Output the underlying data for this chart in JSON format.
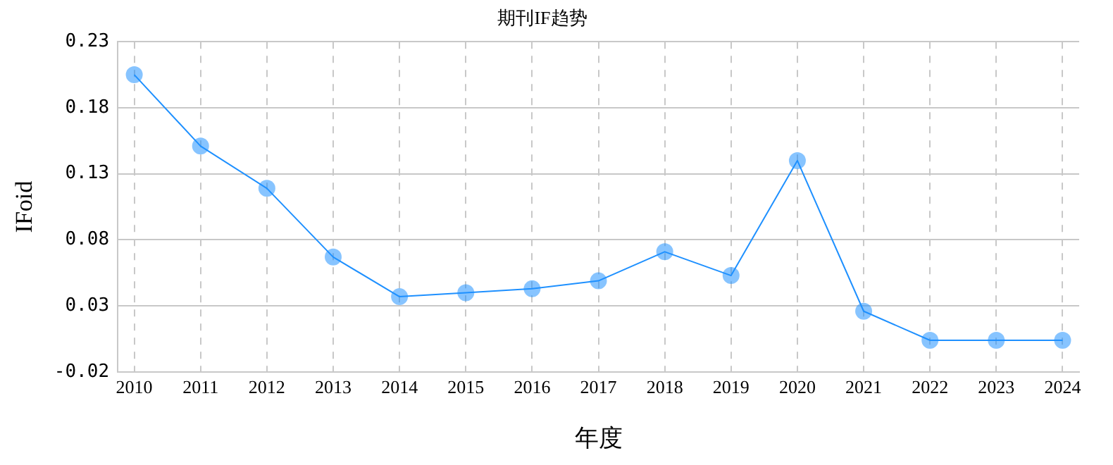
{
  "chart_data": {
    "type": "line",
    "title": "期刊IF趋势",
    "xlabel": "年度",
    "ylabel": "IFoid",
    "categories": [
      "2010",
      "2011",
      "2012",
      "2013",
      "2014",
      "2015",
      "2016",
      "2017",
      "2018",
      "2019",
      "2020",
      "2021",
      "2022",
      "2023",
      "2024"
    ],
    "series": [
      {
        "color": "#1e90ff",
        "values": [
          0.205,
          0.151,
          0.119,
          0.067,
          0.037,
          0.04,
          0.043,
          0.049,
          0.071,
          0.053,
          0.14,
          0.026,
          0.004,
          0.004,
          0.004
        ]
      }
    ],
    "ylim": [
      -0.02,
      0.23
    ],
    "yticks": [
      -0.02,
      0.03,
      0.08,
      0.13,
      0.18,
      0.23
    ],
    "grid": true,
    "legend": false,
    "marker": "circle",
    "line_style": "solid"
  }
}
